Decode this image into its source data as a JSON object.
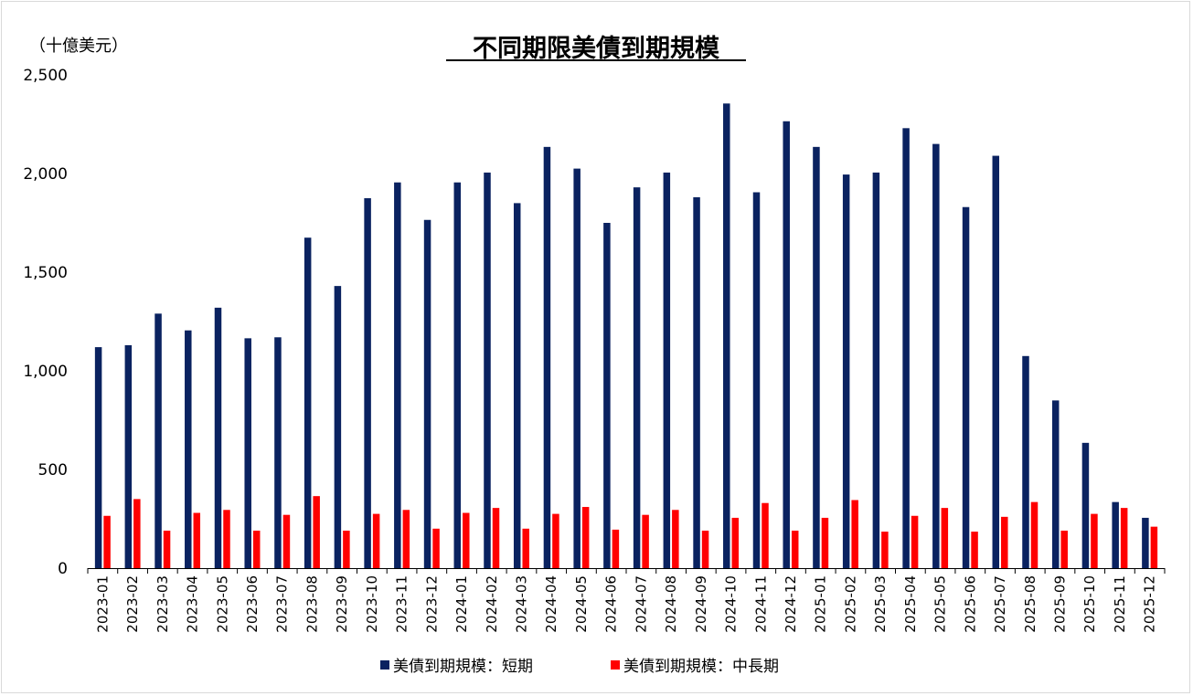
{
  "chart_data": {
    "type": "bar",
    "title": "不同期限美債到期規模",
    "unit_label": "（十億美元）",
    "xlabel": "",
    "ylabel": "",
    "ylim": [
      0,
      2500
    ],
    "yticks": [
      0,
      500,
      1000,
      1500,
      2000,
      2500
    ],
    "ytick_labels": [
      "0",
      "500",
      "1,000",
      "1,500",
      "2,000",
      "2,500"
    ],
    "grid": false,
    "legend_position": "bottom",
    "categories": [
      "2023-01",
      "2023-02",
      "2023-03",
      "2023-04",
      "2023-05",
      "2023-06",
      "2023-07",
      "2023-08",
      "2023-09",
      "2023-10",
      "2023-11",
      "2023-12",
      "2024-01",
      "2024-02",
      "2024-03",
      "2024-04",
      "2024-05",
      "2024-06",
      "2024-07",
      "2024-08",
      "2024-09",
      "2024-10",
      "2024-11",
      "2024-12",
      "2025-01",
      "2025-02",
      "2025-03",
      "2025-04",
      "2025-05",
      "2025-06",
      "2025-07",
      "2025-08",
      "2025-09",
      "2025-10",
      "2025-11",
      "2025-12"
    ],
    "series": [
      {
        "name": "美債到期規模：短期",
        "color": "#0a2260",
        "values": [
          1120,
          1130,
          1290,
          1205,
          1320,
          1165,
          1170,
          1675,
          1430,
          1875,
          1955,
          1765,
          1955,
          2005,
          1850,
          2135,
          2025,
          1750,
          1930,
          2005,
          1880,
          2355,
          1905,
          2265,
          2135,
          1995,
          2005,
          2230,
          2150,
          1830,
          2090,
          1075,
          850,
          635,
          335,
          255
        ]
      },
      {
        "name": "美債到期規模：中長期",
        "color": "#ff0000",
        "values": [
          265,
          350,
          190,
          280,
          295,
          190,
          270,
          365,
          190,
          275,
          295,
          200,
          280,
          305,
          200,
          275,
          310,
          195,
          270,
          295,
          190,
          255,
          330,
          190,
          255,
          345,
          185,
          265,
          305,
          185,
          260,
          335,
          190,
          275,
          305,
          210
        ]
      }
    ]
  }
}
